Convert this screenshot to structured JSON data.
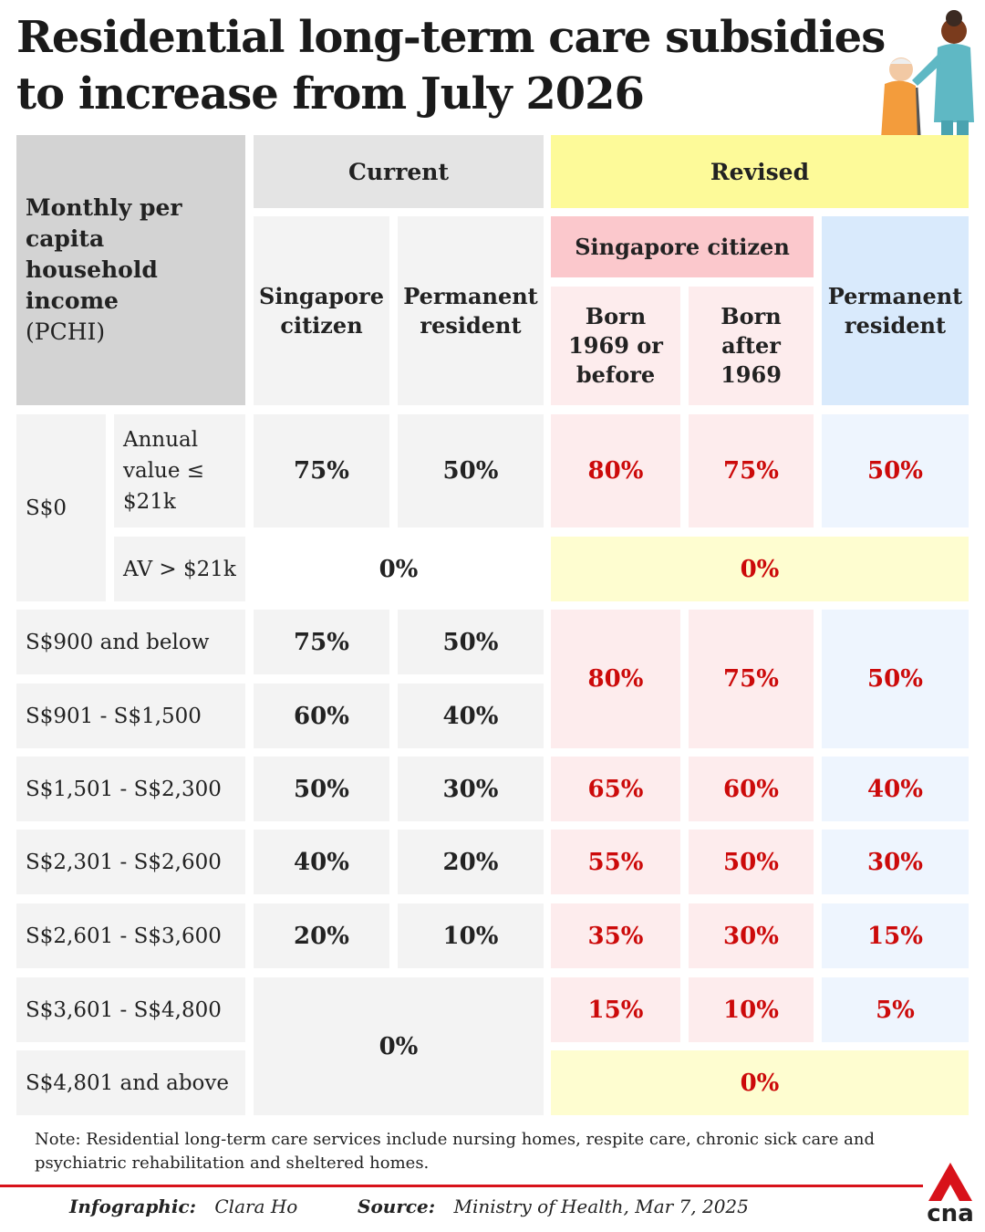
{
  "title": "Residential long-term care subsidies to increase from July 2026",
  "header": {
    "pchi_title": "Monthly per capita household income",
    "pchi_abbr": "(PCHI)",
    "current": "Current",
    "revised": "Revised",
    "sc_group": "Singapore citizen",
    "col_sc": "Singapore citizen",
    "col_pr": "Permanent resident",
    "col_born_before": "Born 1969 or before",
    "col_born_after": "Born after 1969",
    "col_rev_pr": "Permanent resident"
  },
  "rows": {
    "s0_label": "S$0",
    "s0_av_low_label": "Annual value ≤ $21k",
    "s0_av_high_label": "AV > $21k",
    "r900": "S$900 and below",
    "r1500": "S$901 - S$1,500",
    "r2300": "S$1,501 - S$2,300",
    "r2600": "S$2,301 - S$2,600",
    "r3600": "S$2,601 - S$3,600",
    "r4800": "S$3,601 - S$4,800",
    "r4801": "S$4,801 and above"
  },
  "values": {
    "s0_av_low": {
      "cur_sc": "75%",
      "cur_pr": "50%",
      "rev_before": "80%",
      "rev_after": "75%",
      "rev_pr": "50%"
    },
    "s0_av_high": {
      "current": "0%",
      "revised": "0%"
    },
    "r900": {
      "cur_sc": "75%",
      "cur_pr": "50%"
    },
    "r1500": {
      "cur_sc": "60%",
      "cur_pr": "40%"
    },
    "r900_1500_revised": {
      "rev_before": "80%",
      "rev_after": "75%",
      "rev_pr": "50%"
    },
    "r2300": {
      "cur_sc": "50%",
      "cur_pr": "30%",
      "rev_before": "65%",
      "rev_after": "60%",
      "rev_pr": "40%"
    },
    "r2600": {
      "cur_sc": "40%",
      "cur_pr": "20%",
      "rev_before": "55%",
      "rev_after": "50%",
      "rev_pr": "30%"
    },
    "r3600": {
      "cur_sc": "20%",
      "cur_pr": "10%",
      "rev_before": "35%",
      "rev_after": "30%",
      "rev_pr": "15%"
    },
    "r4800": {
      "rev_before": "15%",
      "rev_after": "10%",
      "rev_pr": "5%"
    },
    "r4800_4801_current": "0%",
    "r4801_revised": "0%"
  },
  "note": "Note: Residential long-term care services include nursing homes, respite care, chronic sick care and psychiatric rehabilitation and sheltered homes.",
  "footer": {
    "infographic_label": "Infographic:",
    "infographic_value": "Clara Ho",
    "source_label": "Source:",
    "source_value": "Ministry of Health, Mar 7, 2025",
    "logo_text": "cna"
  },
  "illustration": "nurse-pushing-elderly-wheelchair",
  "colors": {
    "revised_value": "#cc0a0a",
    "revised_header": "#fdfa99",
    "singapore_citizen_header": "#fbc8cc",
    "permanent_resident_header": "#d9eafc",
    "brand_red": "#d8121a"
  }
}
